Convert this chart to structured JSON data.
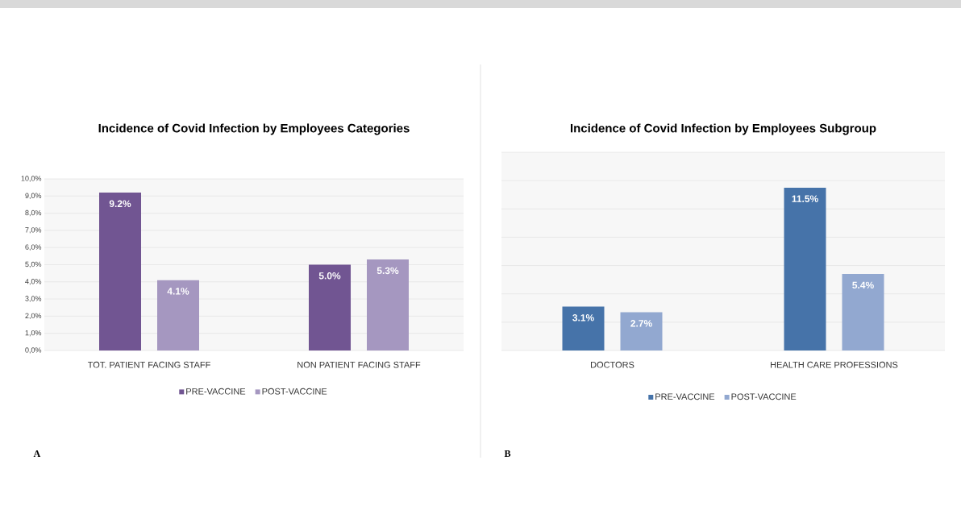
{
  "chart_data": [
    {
      "type": "bar",
      "title": "Incidence of Covid Infection by Employees Categories",
      "categories": [
        "TOT. PATIENT FACING STAFF",
        "NON PATIENT FACING STAFF"
      ],
      "series": [
        {
          "name": "PRE-VACCINE",
          "color": "#715592",
          "values": [
            9.2,
            5.0
          ],
          "value_labels": [
            "9.2%",
            "5.0%"
          ]
        },
        {
          "name": "POST-VACCINE",
          "color": "#a597c0",
          "values": [
            4.1,
            5.3
          ],
          "value_labels": [
            "4.1%",
            "5.3%"
          ]
        }
      ],
      "ylim": [
        0,
        10
      ],
      "yticks": [
        {
          "value": 0,
          "label": "0,0%"
        },
        {
          "value": 1,
          "label": "1,0%"
        },
        {
          "value": 2,
          "label": "2,0%"
        },
        {
          "value": 3,
          "label": "3,0%"
        },
        {
          "value": 4,
          "label": "4,0%"
        },
        {
          "value": 5,
          "label": "5,0%"
        },
        {
          "value": 6,
          "label": "6,0%"
        },
        {
          "value": 7,
          "label": "7,0%"
        },
        {
          "value": 8,
          "label": "8,0%"
        },
        {
          "value": 9,
          "label": "9,0%"
        },
        {
          "value": 10,
          "label": "10,0%"
        }
      ],
      "grid": "y",
      "legend": "bottom",
      "annotations": [
        "A"
      ]
    },
    {
      "type": "bar",
      "title": "Incidence of Covid Infection by Employees Subgroup",
      "categories": [
        "DOCTORS",
        "HEALTH CARE PROFESSIONS"
      ],
      "series": [
        {
          "name": "PRE-VACCINE",
          "color": "#4673a9",
          "values": [
            3.1,
            11.5
          ],
          "value_labels": [
            "3.1%",
            "11.5%"
          ]
        },
        {
          "name": "POST-VACCINE",
          "color": "#92a8d0",
          "values": [
            2.7,
            5.4
          ],
          "value_labels": [
            "2.7%",
            "5.4%"
          ]
        }
      ],
      "ylim": [
        0,
        14
      ],
      "yticks": [
        {
          "value": 0,
          "label": null
        },
        {
          "value": 2,
          "label": null
        },
        {
          "value": 4,
          "label": null
        },
        {
          "value": 6,
          "label": null
        },
        {
          "value": 8,
          "label": null
        },
        {
          "value": 10,
          "label": null
        },
        {
          "value": 12,
          "label": null
        },
        {
          "value": 14,
          "label": null
        }
      ],
      "tick_labels": "x",
      "grid": "y",
      "legend": "bottom",
      "annotations": [
        "B"
      ]
    }
  ]
}
